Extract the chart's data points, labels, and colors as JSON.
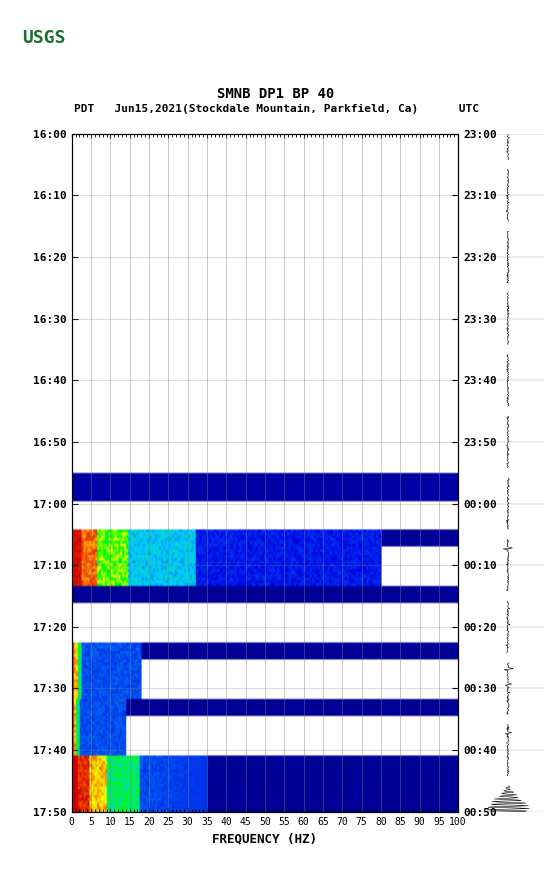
{
  "title_line1": "SMNB DP1 BP 40",
  "title_line2": "PDT   Jun15,2021(Stockdale Mountain, Parkfield, Ca)      UTC",
  "xlabel": "FREQUENCY (HZ)",
  "freq_ticks": [
    0,
    5,
    10,
    15,
    20,
    25,
    30,
    35,
    40,
    45,
    50,
    55,
    60,
    65,
    70,
    75,
    80,
    85,
    90,
    95,
    100
  ],
  "time_labels_left": [
    "16:00",
    "16:10",
    "16:20",
    "16:30",
    "16:40",
    "16:50",
    "17:00",
    "17:10",
    "17:20",
    "17:30",
    "17:40",
    "17:50"
  ],
  "time_labels_right": [
    "23:00",
    "23:10",
    "23:20",
    "23:30",
    "23:40",
    "23:50",
    "00:00",
    "00:10",
    "00:20",
    "00:30",
    "00:40",
    "00:50"
  ],
  "n_time_rows": 12,
  "n_freq_bins": 200,
  "usgs_green": "#1a6e2e"
}
